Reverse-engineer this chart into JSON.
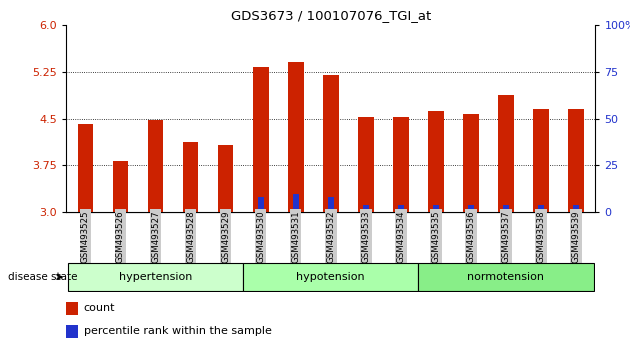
{
  "title": "GDS3673 / 100107076_TGI_at",
  "samples": [
    "GSM493525",
    "GSM493526",
    "GSM493527",
    "GSM493528",
    "GSM493529",
    "GSM493530",
    "GSM493531",
    "GSM493532",
    "GSM493533",
    "GSM493534",
    "GSM493535",
    "GSM493536",
    "GSM493537",
    "GSM493538",
    "GSM493539"
  ],
  "red_values": [
    4.42,
    3.82,
    4.47,
    4.12,
    4.07,
    5.32,
    5.4,
    5.2,
    4.53,
    4.52,
    4.62,
    4.58,
    4.87,
    4.65,
    4.65
  ],
  "blue_pct": [
    2,
    2,
    2,
    2,
    2,
    8,
    10,
    8,
    4,
    4,
    4,
    4,
    4,
    4,
    4
  ],
  "ylim_left": [
    3.0,
    6.0
  ],
  "ylim_right": [
    0,
    100
  ],
  "yticks_left": [
    3.0,
    3.75,
    4.5,
    5.25,
    6.0
  ],
  "yticks_right": [
    0,
    25,
    50,
    75,
    100
  ],
  "groups": [
    {
      "label": "hypertension",
      "start": 0,
      "end": 5
    },
    {
      "label": "hypotension",
      "start": 5,
      "end": 10
    },
    {
      "label": "normotension",
      "start": 10,
      "end": 15
    }
  ],
  "group_colors": [
    "#ccffcc",
    "#aaffaa",
    "#88ee88"
  ],
  "bar_color_red": "#cc2200",
  "bar_color_blue": "#2233cc",
  "bar_width": 0.45,
  "blue_bar_width": 0.18,
  "disease_state_label": "disease state",
  "legend_count": "count",
  "legend_pct": "percentile rank within the sample"
}
